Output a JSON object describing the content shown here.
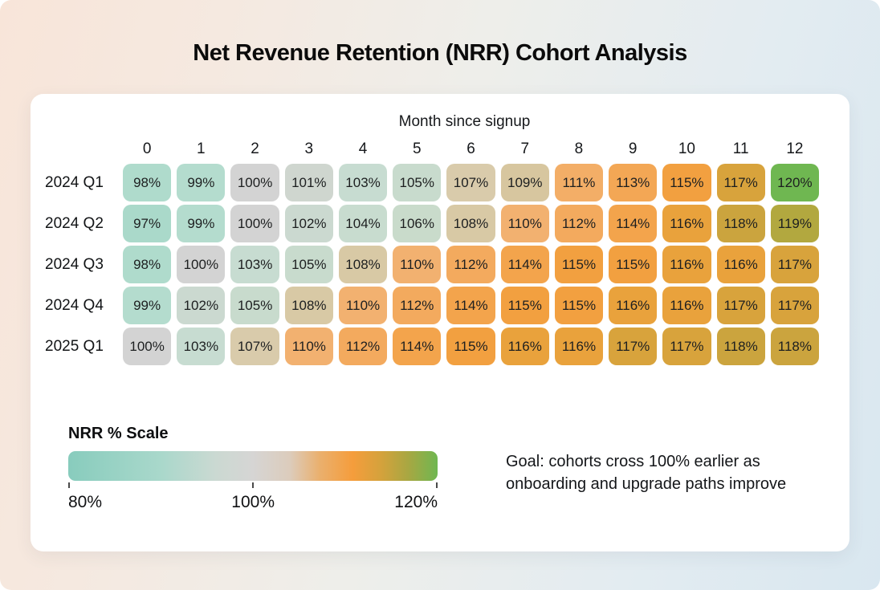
{
  "page": {
    "title": "Net Revenue Retention (NRR) Cohort Analysis"
  },
  "chart_data": {
    "type": "heatmap",
    "title": "Net Revenue Retention (NRR) Cohort Analysis",
    "x_axis_title": "Month since signup",
    "columns": [
      "0",
      "1",
      "2",
      "3",
      "4",
      "5",
      "6",
      "7",
      "8",
      "9",
      "10",
      "11",
      "12"
    ],
    "rows": [
      {
        "label": "2024 Q1",
        "values": [
          98,
          99,
          100,
          101,
          103,
          105,
          107,
          109,
          111,
          113,
          115,
          117,
          120
        ]
      },
      {
        "label": "2024 Q2",
        "values": [
          97,
          99,
          100,
          102,
          104,
          106,
          108,
          110,
          112,
          114,
          116,
          118,
          119
        ]
      },
      {
        "label": "2024 Q3",
        "values": [
          98,
          100,
          103,
          105,
          108,
          110,
          112,
          114,
          115,
          115,
          116,
          116,
          117
        ]
      },
      {
        "label": "2024 Q4",
        "values": [
          99,
          102,
          105,
          108,
          110,
          112,
          114,
          115,
          115,
          116,
          116,
          117,
          117
        ]
      },
      {
        "label": "2025 Q1",
        "values": [
          100,
          103,
          107,
          110,
          112,
          114,
          115,
          116,
          116,
          117,
          117,
          118,
          118
        ]
      }
    ],
    "value_suffix": "%",
    "value_range": [
      80,
      120
    ],
    "colormap_stops": [
      [
        80,
        "#7fc8b9"
      ],
      [
        96,
        "#a5d8c8"
      ],
      [
        99,
        "#b4dcce"
      ],
      [
        100,
        "#d3d3d3"
      ],
      [
        101,
        "#cfd6cf"
      ],
      [
        103,
        "#c7dcd1"
      ],
      [
        106,
        "#c9dbcb"
      ],
      [
        107,
        "#d9cbab"
      ],
      [
        109,
        "#d7c69f"
      ],
      [
        110,
        "#f2b170"
      ],
      [
        112,
        "#f3aa5e"
      ],
      [
        114,
        "#f3a44c"
      ],
      [
        115,
        "#f2a040"
      ],
      [
        116,
        "#e9a23c"
      ],
      [
        117,
        "#d8a33c"
      ],
      [
        118,
        "#cba43e"
      ],
      [
        119,
        "#b2a83f"
      ],
      [
        120,
        "#6fb751"
      ]
    ],
    "legend": {
      "title": "NRR % Scale",
      "tick_labels": [
        "80%",
        "100%",
        "120%"
      ]
    },
    "annotation": "Goal: cohorts cross 100% earlier as onboarding and upgrade paths improve"
  }
}
